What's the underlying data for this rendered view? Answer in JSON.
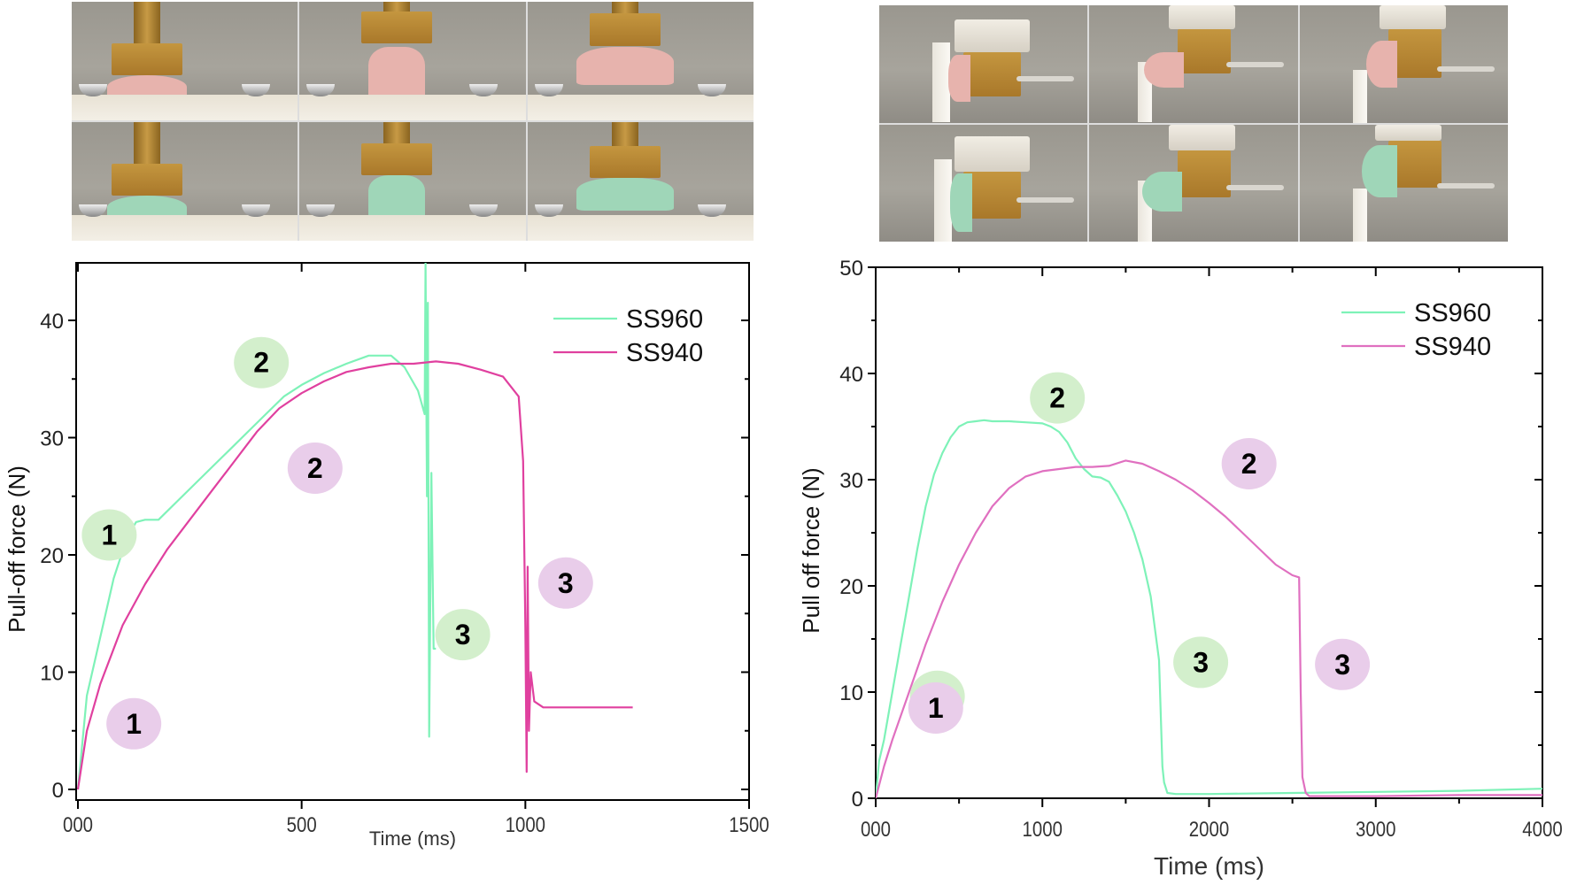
{
  "figure": {
    "left_photos": {
      "rows": [
        {
          "material": "SS940",
          "color": "#e7b3ad",
          "frames": [
            "attached",
            "stretched",
            "detached"
          ]
        },
        {
          "material": "SS960",
          "color": "#9fd6b8",
          "frames": [
            "attached",
            "stretched",
            "detached"
          ]
        }
      ]
    },
    "right_photos": {
      "rows": [
        {
          "material": "SS940",
          "color": "#e7b3ad",
          "frames": [
            "attached",
            "stretched",
            "detached"
          ]
        },
        {
          "material": "SS960",
          "color": "#9fd6b8",
          "frames": [
            "attached",
            "stretched",
            "detached"
          ]
        }
      ]
    }
  },
  "colors": {
    "ss960": "#7ef2b8",
    "ss940_left": "#e0409f",
    "ss940_right": "#e070c0",
    "badge_green": "#d3efcc",
    "badge_purple": "#e9cdea",
    "axis": "#000000"
  },
  "chart_data": [
    {
      "type": "line",
      "title": "",
      "xlabel": "Time (ms)",
      "ylabel": "Pull-off force (N)",
      "xlim": [
        0,
        1500
      ],
      "ylim": [
        -1,
        45
      ],
      "x_ticks": [
        0,
        500,
        1000,
        1500
      ],
      "x_tick_labels": [
        "000",
        "500",
        "1000",
        "1500"
      ],
      "y_ticks": [
        0,
        10,
        20,
        30,
        40
      ],
      "y_tick_labels": [
        "0",
        "10",
        "20",
        "30",
        "40"
      ],
      "grid": false,
      "legend": {
        "position": "upper right",
        "entries": [
          "SS960",
          "SS940"
        ]
      },
      "series": [
        {
          "name": "SS960",
          "x": [
            0,
            20,
            50,
            80,
            110,
            130,
            150,
            180,
            220,
            260,
            300,
            340,
            380,
            420,
            460,
            500,
            550,
            600,
            650,
            700,
            730,
            760,
            775,
            777,
            780,
            782,
            785,
            790,
            795,
            800
          ],
          "y": [
            0,
            8,
            13,
            18,
            21.5,
            22.8,
            23,
            23,
            24.5,
            26,
            27.5,
            29,
            30.5,
            32,
            33.5,
            34.5,
            35.5,
            36.3,
            37,
            37,
            36,
            34,
            32,
            44.9,
            25,
            41.5,
            4.5,
            27,
            12,
            12
          ]
        },
        {
          "name": "SS940",
          "x": [
            0,
            20,
            50,
            100,
            150,
            200,
            250,
            300,
            350,
            400,
            450,
            500,
            550,
            600,
            650,
            700,
            750,
            800,
            850,
            900,
            950,
            985,
            995,
            1000,
            1003,
            1005,
            1008,
            1012,
            1020,
            1040,
            1100,
            1200,
            1240
          ],
          "y": [
            0,
            5,
            9,
            14,
            17.5,
            20.5,
            23,
            25.5,
            28,
            30.5,
            32.5,
            33.8,
            34.8,
            35.6,
            36,
            36.3,
            36.3,
            36.5,
            36.3,
            35.8,
            35.2,
            33.5,
            28,
            14,
            1.5,
            19,
            5,
            10,
            7.5,
            7,
            7,
            7,
            7
          ]
        }
      ],
      "annotations": [
        {
          "text": "1",
          "series": "SS960",
          "x": 70,
          "y": 21.7
        },
        {
          "text": "2",
          "series": "SS960",
          "x": 410,
          "y": 36.4
        },
        {
          "text": "3",
          "series": "SS960",
          "x": 860,
          "y": 13.2
        },
        {
          "text": "1",
          "series": "SS940",
          "x": 125,
          "y": 5.6
        },
        {
          "text": "2",
          "series": "SS940",
          "x": 530,
          "y": 27.4
        },
        {
          "text": "3",
          "series": "SS940",
          "x": 1090,
          "y": 17.6
        }
      ]
    },
    {
      "type": "line",
      "title": "",
      "xlabel": "Time (ms)",
      "ylabel": "Pull off force (N)",
      "xlim": [
        0,
        4000
      ],
      "ylim": [
        0,
        50
      ],
      "x_ticks": [
        0,
        1000,
        2000,
        3000,
        4000
      ],
      "x_tick_labels": [
        "000",
        "1000",
        "2000",
        "3000",
        "4000"
      ],
      "y_ticks": [
        0,
        10,
        20,
        30,
        40,
        50
      ],
      "y_tick_labels": [
        "0",
        "10",
        "20",
        "30",
        "40",
        "50"
      ],
      "grid": false,
      "legend": {
        "position": "upper right",
        "entries": [
          "SS960",
          "SS940"
        ]
      },
      "series": [
        {
          "name": "SS960",
          "x": [
            0,
            20,
            50,
            100,
            150,
            200,
            250,
            300,
            350,
            400,
            450,
            500,
            550,
            600,
            650,
            700,
            800,
            900,
            1000,
            1050,
            1100,
            1150,
            1200,
            1250,
            1300,
            1350,
            1400,
            1450,
            1500,
            1550,
            1600,
            1650,
            1700,
            1720,
            1730,
            1750,
            1800,
            2000,
            2500,
            3000,
            3500,
            4000
          ],
          "y": [
            0,
            3.5,
            5.5,
            10,
            14.5,
            19,
            23.5,
            27.5,
            30.5,
            32.5,
            34,
            35,
            35.4,
            35.5,
            35.6,
            35.5,
            35.5,
            35.4,
            35.3,
            35,
            34.5,
            33.5,
            32,
            31,
            30.3,
            30.2,
            29.8,
            28.5,
            27,
            25,
            22.5,
            19,
            13,
            3,
            1.5,
            0.5,
            0.4,
            0.4,
            0.5,
            0.6,
            0.7,
            0.9
          ]
        },
        {
          "name": "SS940",
          "x": [
            0,
            50,
            100,
            200,
            300,
            400,
            500,
            600,
            700,
            800,
            900,
            1000,
            1100,
            1200,
            1300,
            1400,
            1500,
            1600,
            1700,
            1800,
            1900,
            2000,
            2100,
            2200,
            2300,
            2400,
            2500,
            2540,
            2550,
            2560,
            2580,
            2600,
            3000,
            3500,
            4000
          ],
          "y": [
            0,
            3,
            5.5,
            10,
            14.5,
            18.5,
            22,
            25,
            27.5,
            29.2,
            30.3,
            30.8,
            31,
            31.2,
            31.2,
            31.3,
            31.8,
            31.5,
            30.8,
            30,
            29,
            27.8,
            26.5,
            25,
            23.5,
            22,
            21,
            20.8,
            10,
            2,
            0.5,
            0.2,
            0.2,
            0.3,
            0.3
          ]
        }
      ],
      "annotations": [
        {
          "text": "1",
          "series": "SS960",
          "x": 370,
          "y": 9.6
        },
        {
          "text": "1",
          "series": "SS940",
          "x": 360,
          "y": 8.5
        },
        {
          "text": "2",
          "series": "SS960",
          "x": 1090,
          "y": 37.7
        },
        {
          "text": "2",
          "series": "SS940",
          "x": 2240,
          "y": 31.5
        },
        {
          "text": "3",
          "series": "SS960",
          "x": 1950,
          "y": 12.8
        },
        {
          "text": "3",
          "series": "SS940",
          "x": 2800,
          "y": 12.6
        }
      ]
    }
  ]
}
